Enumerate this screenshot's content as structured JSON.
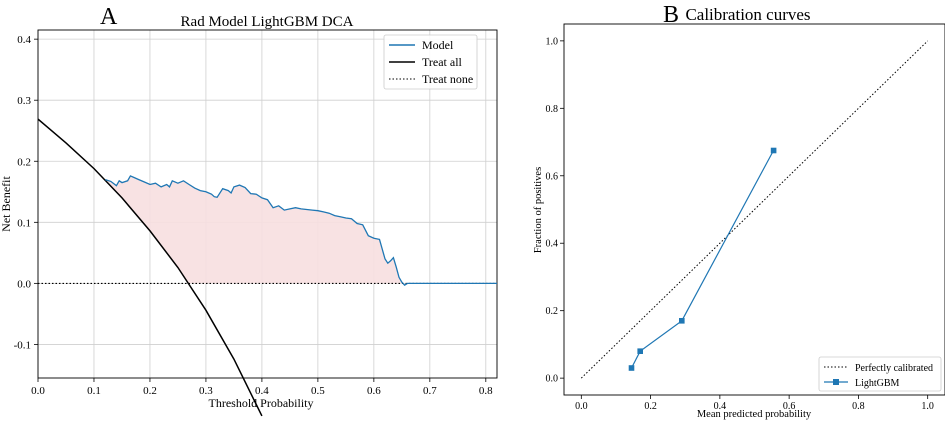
{
  "chart_data": [
    {
      "panel": "A",
      "type": "line",
      "title": "Rad Model LightGBM DCA",
      "xlabel": "Threshold Probability",
      "ylabel": "Net Benefit",
      "xlim": [
        0.0,
        0.82
      ],
      "ylim": [
        -0.155,
        0.415
      ],
      "xticks": [
        "0.0",
        "0.1",
        "0.2",
        "0.3",
        "0.4",
        "0.5",
        "0.6",
        "0.7",
        "0.8"
      ],
      "yticks": [
        "-0.1",
        "0.0",
        "0.1",
        "0.2",
        "0.3",
        "0.4"
      ],
      "grid": true,
      "legend_position": "top-right",
      "colors": {
        "model": "#1f77b4",
        "treat_all": "#000000",
        "treat_none": "#000000",
        "fill": "#f7dfe0"
      },
      "series": [
        {
          "name": "Model",
          "x": [
            0.12,
            0.13,
            0.14,
            0.145,
            0.15,
            0.16,
            0.165,
            0.17,
            0.18,
            0.19,
            0.2,
            0.21,
            0.22,
            0.23,
            0.235,
            0.24,
            0.25,
            0.26,
            0.27,
            0.28,
            0.29,
            0.3,
            0.31,
            0.315,
            0.32,
            0.33,
            0.34,
            0.345,
            0.35,
            0.36,
            0.37,
            0.38,
            0.39,
            0.4,
            0.41,
            0.42,
            0.43,
            0.44,
            0.45,
            0.46,
            0.47,
            0.48,
            0.49,
            0.5,
            0.51,
            0.52,
            0.53,
            0.54,
            0.55,
            0.56,
            0.57,
            0.58,
            0.59,
            0.6,
            0.61,
            0.62,
            0.625,
            0.63,
            0.635,
            0.64,
            0.645,
            0.65,
            0.655,
            0.66,
            0.7,
            0.75,
            0.82
          ],
          "y": [
            0.17,
            0.167,
            0.16,
            0.168,
            0.165,
            0.168,
            0.176,
            0.174,
            0.17,
            0.166,
            0.162,
            0.164,
            0.158,
            0.162,
            0.158,
            0.168,
            0.164,
            0.168,
            0.162,
            0.156,
            0.152,
            0.15,
            0.146,
            0.142,
            0.141,
            0.155,
            0.152,
            0.148,
            0.158,
            0.161,
            0.157,
            0.147,
            0.146,
            0.14,
            0.137,
            0.124,
            0.127,
            0.12,
            0.122,
            0.124,
            0.122,
            0.121,
            0.12,
            0.119,
            0.117,
            0.115,
            0.111,
            0.109,
            0.107,
            0.106,
            0.098,
            0.096,
            0.078,
            0.074,
            0.072,
            0.04,
            0.033,
            0.037,
            0.042,
            0.027,
            0.01,
            0.002,
            -0.003,
            0.0,
            0.0,
            0.0,
            0.0
          ]
        },
        {
          "name": "Treat all",
          "x": [
            0.0,
            0.05,
            0.1,
            0.15,
            0.2,
            0.25,
            0.3,
            0.35,
            0.4
          ],
          "y": [
            0.269,
            0.23,
            0.188,
            0.14,
            0.086,
            0.026,
            -0.044,
            -0.124,
            -0.217
          ]
        },
        {
          "name": "Treat none",
          "x": [
            0.0,
            0.82
          ],
          "y": [
            0.0,
            0.0
          ]
        }
      ]
    },
    {
      "panel": "B",
      "type": "line",
      "title": "Calibration curves",
      "xlabel": "Mean predicted probability",
      "ylabel": "Fraction of positives",
      "xlim": [
        -0.05,
        1.05
      ],
      "ylim": [
        -0.05,
        1.05
      ],
      "xticks": [
        "0.0",
        "0.2",
        "0.4",
        "0.6",
        "0.8",
        "1.0"
      ],
      "yticks": [
        "0.0",
        "0.2",
        "0.4",
        "0.6",
        "0.8",
        "1.0"
      ],
      "grid": false,
      "legend_position": "bottom-right",
      "colors": {
        "lightgbm": "#1f77b4",
        "perfect": "#000000"
      },
      "series": [
        {
          "name": "Perfectly calibrated",
          "x": [
            0.0,
            1.0
          ],
          "y": [
            0.0,
            1.0
          ]
        },
        {
          "name": "LightGBM",
          "x": [
            0.145,
            0.17,
            0.29,
            0.555
          ],
          "y": [
            0.03,
            0.08,
            0.17,
            0.675
          ]
        }
      ]
    }
  ]
}
